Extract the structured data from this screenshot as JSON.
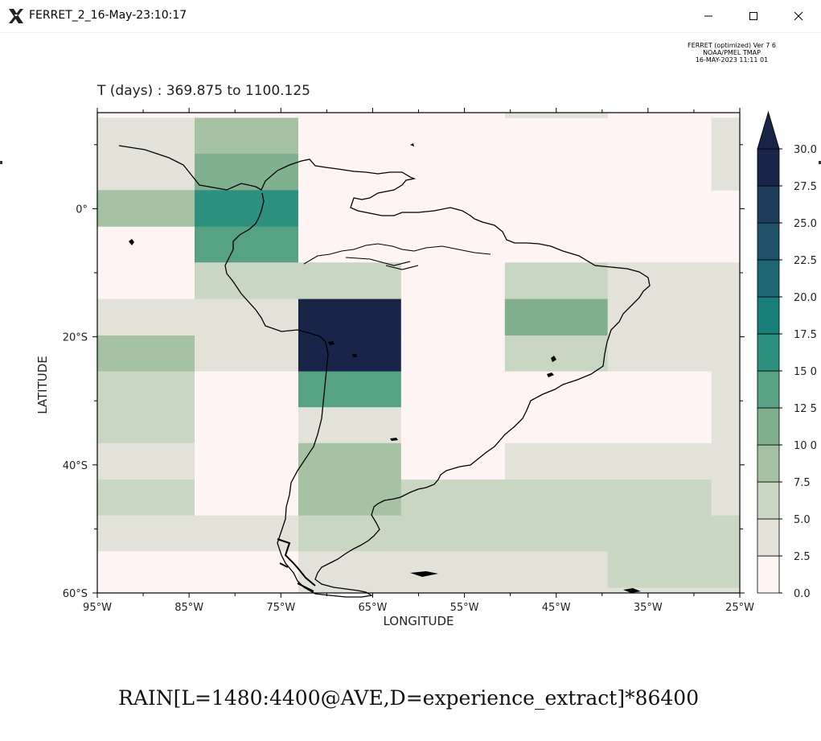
{
  "window": {
    "title": "FERRET_2_16-May-23:10:17",
    "icons": {
      "app": "x11-icon",
      "minimize": "minimize-icon",
      "maximize": "maximize-icon",
      "close": "close-icon"
    }
  },
  "stamp": {
    "line1": "FERRET (optimized) Ver 7 6",
    "line2": "NOAA/PMEL TMAP",
    "line3": "16-MAY-2023 11:11 01"
  },
  "subtitle": "T (days) : 369.875 to 1100.125",
  "bottom_title": "RAIN[L=1480:4400@AVE,D=experience_extract]*86400",
  "colors": {
    "c0": "#fff4f4",
    "c1": "#e2e2d8",
    "c2": "#c9d6c2",
    "c3": "#a5c2a2",
    "c4": "#80b08d",
    "c5": "#56a283",
    "c6": "#2e9180",
    "c7": "#187e7a",
    "c8": "#1e6873",
    "c9": "#1f5268",
    "c10": "#1e3c5a",
    "c11": "#182448"
  },
  "chart_data": {
    "type": "heatmap",
    "title": "RAIN[L=1480:4400@AVE,D=experience_extract]*86400",
    "subtitle": "T (days) : 369.875 to 1100.125",
    "xlabel": "LONGITUDE",
    "ylabel": "LATITUDE",
    "xlim": [
      -95,
      -25
    ],
    "ylim": [
      -60,
      15
    ],
    "x_ticks": [
      {
        "value": -95,
        "label": "95°W"
      },
      {
        "value": -85,
        "label": "85°W"
      },
      {
        "value": -75,
        "label": "75°W"
      },
      {
        "value": -65,
        "label": "65°W"
      },
      {
        "value": -55,
        "label": "55°W"
      },
      {
        "value": -45,
        "label": "45°W"
      },
      {
        "value": -35,
        "label": "35°W"
      },
      {
        "value": -25,
        "label": "25°W"
      }
    ],
    "y_ticks": [
      {
        "value": 0,
        "label": "0°"
      },
      {
        "value": -20,
        "label": "20°S"
      },
      {
        "value": -40,
        "label": "40°S"
      },
      {
        "value": -60,
        "label": "60°S"
      }
    ],
    "colorbar": {
      "levels": [
        0.0,
        2.5,
        5.0,
        7.5,
        10.0,
        12.5,
        15.0,
        17.5,
        20.0,
        22.5,
        25.0,
        27.5,
        30.0
      ],
      "labels": [
        "0.0",
        "2.5",
        "5.0",
        "7.5",
        "10 0",
        "12 5",
        "15 0",
        "17.5",
        "20.0",
        "22.5",
        "25.0",
        "27.5",
        "30.0"
      ],
      "overflow_arrow": true
    },
    "cells": [
      {
        "x0": -95,
        "x1": -84.4,
        "y0": 8.6,
        "y1": 14.2,
        "v": 3.5
      },
      {
        "x0": -84.4,
        "x1": -73.1,
        "y0": 8.6,
        "y1": 14.2,
        "v": 8.5
      },
      {
        "x0": -73.1,
        "x1": -28.1,
        "y0": 8.6,
        "y1": 14.2,
        "v": 1.0
      },
      {
        "x0": -95,
        "x1": -84.4,
        "y0": 2.9,
        "y1": 8.6,
        "v": 3.5
      },
      {
        "x0": -84.4,
        "x1": -73.1,
        "y0": 2.9,
        "y1": 8.6,
        "v": 11.0
      },
      {
        "x0": -73.1,
        "x1": -28.1,
        "y0": 2.9,
        "y1": 8.6,
        "v": 1.0
      },
      {
        "x0": -95,
        "x1": -84.4,
        "y0": -2.8,
        "y1": 2.9,
        "v": 8.5
      },
      {
        "x0": -84.4,
        "x1": -73.1,
        "y0": -2.8,
        "y1": 2.9,
        "v": 16.0
      },
      {
        "x0": -73.1,
        "x1": -25,
        "y0": -2.8,
        "y1": 2.9,
        "v": 1.0
      },
      {
        "x0": -95,
        "x1": -84.4,
        "y0": -8.4,
        "y1": -2.8,
        "v": 1.0
      },
      {
        "x0": -84.4,
        "x1": -73.1,
        "y0": -8.4,
        "y1": -2.8,
        "v": 13.5
      },
      {
        "x0": -73.1,
        "x1": -25,
        "y0": -8.4,
        "y1": -2.8,
        "v": 1.0
      },
      {
        "x0": -95,
        "x1": -84.4,
        "y0": -14.1,
        "y1": -8.4,
        "v": 1.0
      },
      {
        "x0": -84.4,
        "x1": -61.9,
        "y0": -14.1,
        "y1": -8.4,
        "v": 6.0
      },
      {
        "x0": -61.9,
        "x1": -50.6,
        "y0": -14.1,
        "y1": -8.4,
        "v": 1.0
      },
      {
        "x0": -50.6,
        "x1": -39.4,
        "y0": -14.1,
        "y1": -8.4,
        "v": 6.0
      },
      {
        "x0": -39.4,
        "x1": -25,
        "y0": -14.1,
        "y1": -8.4,
        "v": 3.5
      },
      {
        "x0": -95,
        "x1": -73.1,
        "y0": -19.8,
        "y1": -14.1,
        "v": 3.5
      },
      {
        "x0": -73.1,
        "x1": -61.9,
        "y0": -19.8,
        "y1": -14.1,
        "v": 31.0
      },
      {
        "x0": -61.9,
        "x1": -50.6,
        "y0": -19.8,
        "y1": -14.1,
        "v": 1.0
      },
      {
        "x0": -50.6,
        "x1": -39.4,
        "y0": -19.8,
        "y1": -14.1,
        "v": 11.0
      },
      {
        "x0": -39.4,
        "x1": -25,
        "y0": -19.8,
        "y1": -14.1,
        "v": 3.5
      },
      {
        "x0": -95,
        "x1": -84.4,
        "y0": -25.4,
        "y1": -19.8,
        "v": 8.5
      },
      {
        "x0": -84.4,
        "x1": -73.1,
        "y0": -25.4,
        "y1": -19.8,
        "v": 3.5
      },
      {
        "x0": -73.1,
        "x1": -61.9,
        "y0": -25.4,
        "y1": -19.8,
        "v": 31.0
      },
      {
        "x0": -61.9,
        "x1": -50.6,
        "y0": -25.4,
        "y1": -19.8,
        "v": 1.0
      },
      {
        "x0": -50.6,
        "x1": -39.4,
        "y0": -25.4,
        "y1": -19.8,
        "v": 6.0
      },
      {
        "x0": -39.4,
        "x1": -25,
        "y0": -25.4,
        "y1": -19.8,
        "v": 3.5
      },
      {
        "x0": -95,
        "x1": -84.4,
        "y0": -31.0,
        "y1": -25.4,
        "v": 6.0
      },
      {
        "x0": -84.4,
        "x1": -73.1,
        "y0": -31.0,
        "y1": -25.4,
        "v": 1.0
      },
      {
        "x0": -73.1,
        "x1": -61.9,
        "y0": -31.0,
        "y1": -25.4,
        "v": 13.5
      },
      {
        "x0": -61.9,
        "x1": -28.1,
        "y0": -31.0,
        "y1": -25.4,
        "v": 1.0
      },
      {
        "x0": -28.1,
        "x1": -25,
        "y0": -31.0,
        "y1": -25.4,
        "v": 3.5
      },
      {
        "x0": -95,
        "x1": -84.4,
        "y0": -36.6,
        "y1": -31.0,
        "v": 6.0
      },
      {
        "x0": -84.4,
        "x1": -73.1,
        "y0": -36.6,
        "y1": -31.0,
        "v": 1.0
      },
      {
        "x0": -73.1,
        "x1": -61.9,
        "y0": -36.6,
        "y1": -31.0,
        "v": 3.5
      },
      {
        "x0": -61.9,
        "x1": -28.1,
        "y0": -36.6,
        "y1": -31.0,
        "v": 1.0
      },
      {
        "x0": -28.1,
        "x1": -25,
        "y0": -36.6,
        "y1": -31.0,
        "v": 3.5
      },
      {
        "x0": -95,
        "x1": -84.4,
        "y0": -42.3,
        "y1": -36.6,
        "v": 3.5
      },
      {
        "x0": -84.4,
        "x1": -73.1,
        "y0": -42.3,
        "y1": -36.6,
        "v": 1.0
      },
      {
        "x0": -73.1,
        "x1": -61.9,
        "y0": -42.3,
        "y1": -36.6,
        "v": 8.5
      },
      {
        "x0": -61.9,
        "x1": -50.6,
        "y0": -42.3,
        "y1": -36.6,
        "v": 1.0
      },
      {
        "x0": -50.6,
        "x1": -25,
        "y0": -42.3,
        "y1": -36.6,
        "v": 3.5
      },
      {
        "x0": -95,
        "x1": -84.4,
        "y0": -47.9,
        "y1": -42.3,
        "v": 6.0
      },
      {
        "x0": -84.4,
        "x1": -73.1,
        "y0": -47.9,
        "y1": -42.3,
        "v": 1.0
      },
      {
        "x0": -73.1,
        "x1": -61.9,
        "y0": -47.9,
        "y1": -42.3,
        "v": 8.5
      },
      {
        "x0": -61.9,
        "x1": -28.1,
        "y0": -47.9,
        "y1": -42.3,
        "v": 6.0
      },
      {
        "x0": -28.1,
        "x1": -25,
        "y0": -47.9,
        "y1": -42.3,
        "v": 3.5
      },
      {
        "x0": -95,
        "x1": -73.1,
        "y0": -53.5,
        "y1": -47.9,
        "v": 3.5
      },
      {
        "x0": -73.1,
        "x1": -25,
        "y0": -53.5,
        "y1": -47.9,
        "v": 6.0
      },
      {
        "x0": -95,
        "x1": -73.1,
        "y0": -60,
        "y1": -53.5,
        "v": 1.0
      },
      {
        "x0": -73.1,
        "x1": -39.4,
        "y0": -60,
        "y1": -53.5,
        "v": 3.5
      },
      {
        "x0": -39.4,
        "x1": -25,
        "y0": -59.2,
        "y1": -53.5,
        "v": 6.0
      },
      {
        "x0": -39.4,
        "x1": -25,
        "y0": -60,
        "y1": -59.2,
        "v": 3.5
      },
      {
        "x0": -50.6,
        "x1": -39.4,
        "y0": 14.2,
        "y1": 15,
        "v": 3.5
      },
      {
        "x0": -28.1,
        "x1": -25,
        "y0": 2.9,
        "y1": 14.2,
        "v": 3.5
      }
    ]
  }
}
